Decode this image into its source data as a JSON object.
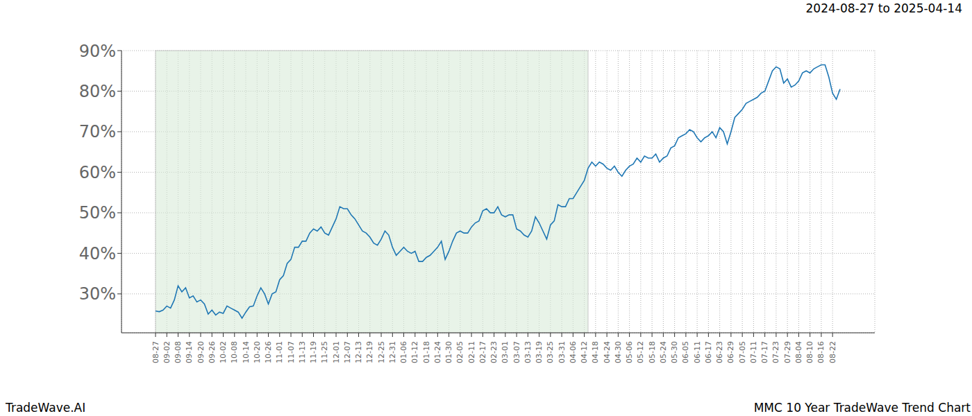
{
  "chart_data": {
    "type": "line",
    "title": "2024-08-27 to 2025-04-14",
    "subtitle": "MMC 10 Year TradeWave Trend Chart",
    "annotations": [
      "TradeWave.AI"
    ],
    "color": "#1f77b4",
    "grid": true,
    "ylim": [
      20.4,
      90
    ],
    "yticks": [
      {
        "value": 30,
        "label": "30%"
      },
      {
        "value": 40,
        "label": "40%"
      },
      {
        "value": 50,
        "label": "50%"
      },
      {
        "value": 60,
        "label": "60%"
      },
      {
        "value": 70,
        "label": "70%"
      },
      {
        "value": 80,
        "label": "80%"
      },
      {
        "value": 90,
        "label": "90%"
      }
    ],
    "categories": [
      "08-27",
      null,
      null,
      "09-02",
      null,
      null,
      "09-08",
      null,
      null,
      "09-14",
      null,
      null,
      "09-20",
      null,
      null,
      "09-26",
      null,
      null,
      "10-02",
      null,
      null,
      "10-08",
      null,
      null,
      "10-14",
      null,
      null,
      "10-20",
      null,
      null,
      "10-26",
      null,
      null,
      "11-01",
      null,
      null,
      "11-07",
      null,
      null,
      "11-13",
      null,
      null,
      "11-19",
      null,
      null,
      "11-25",
      null,
      null,
      "12-01",
      null,
      null,
      "12-07",
      null,
      null,
      "12-13",
      null,
      null,
      "12-19",
      null,
      null,
      "12-25",
      null,
      null,
      "12-31",
      null,
      null,
      "01-06",
      null,
      null,
      "01-12",
      null,
      null,
      "01-18",
      null,
      null,
      "01-24",
      null,
      null,
      "01-30",
      null,
      null,
      "02-05",
      null,
      null,
      "02-11",
      null,
      null,
      "02-17",
      null,
      null,
      "02-23",
      null,
      null,
      "03-01",
      null,
      null,
      "03-07",
      null,
      null,
      "03-13",
      null,
      null,
      "03-19",
      null,
      null,
      "03-25",
      null,
      null,
      "03-31",
      null,
      null,
      "04-06",
      null,
      null,
      "04-12",
      null,
      null,
      "04-18",
      null,
      null,
      "04-24",
      null,
      null,
      "04-30",
      null,
      null,
      "05-06",
      null,
      null,
      "05-12",
      null,
      null,
      "05-18",
      null,
      null,
      "05-24",
      null,
      null,
      "05-30",
      null,
      null,
      "06-05",
      null,
      null,
      "06-11",
      null,
      null,
      "06-17",
      null,
      null,
      "06-23",
      null,
      null,
      "06-29",
      null,
      null,
      "07-05",
      null,
      null,
      "07-11",
      null,
      null,
      "07-17",
      null,
      null,
      "07-23",
      null,
      null,
      "07-29",
      null,
      null,
      "08-04",
      null,
      null,
      "08-10",
      null,
      null,
      "08-16",
      null,
      null,
      "08-22",
      null,
      null
    ],
    "values": [
      25.8,
      25.6,
      26.0,
      27.0,
      26.5,
      28.5,
      32.0,
      30.5,
      31.5,
      29.0,
      29.5,
      28.0,
      28.5,
      27.5,
      25.0,
      26.0,
      24.8,
      25.5,
      25.2,
      27.0,
      26.5,
      26.0,
      25.5,
      24.0,
      25.5,
      26.8,
      27.0,
      29.5,
      31.5,
      30.0,
      27.5,
      30.0,
      30.5,
      33.5,
      34.5,
      37.5,
      38.5,
      41.5,
      41.5,
      43.0,
      43.0,
      45.0,
      46.0,
      45.5,
      46.5,
      45.0,
      44.5,
      46.5,
      48.5,
      51.5,
      51.0,
      51.0,
      49.5,
      48.5,
      47.0,
      45.5,
      45.0,
      44.0,
      42.5,
      42.0,
      43.5,
      45.5,
      44.5,
      41.5,
      39.5,
      40.5,
      41.5,
      40.5,
      40.0,
      40.5,
      38.0,
      38.0,
      39.0,
      39.5,
      40.5,
      41.5,
      43.0,
      38.5,
      40.5,
      43.0,
      45.0,
      45.5,
      45.0,
      45.0,
      46.5,
      47.5,
      48.0,
      50.5,
      51.0,
      50.0,
      50.0,
      51.5,
      49.5,
      49.0,
      49.5,
      49.5,
      46.0,
      45.5,
      44.5,
      44.0,
      45.5,
      49.0,
      47.5,
      45.5,
      43.5,
      47.0,
      48.0,
      52.0,
      51.5,
      51.5,
      53.5,
      53.5,
      55.0,
      56.5,
      58.0,
      61.0,
      62.5,
      61.5,
      62.5,
      62.0,
      61.0,
      60.5,
      61.5,
      60.0,
      59.0,
      60.5,
      61.5,
      62.0,
      63.5,
      62.5,
      64.0,
      63.5,
      63.5,
      64.5,
      62.5,
      63.5,
      64.0,
      66.0,
      66.5,
      68.5,
      69.0,
      69.5,
      70.5,
      70.0,
      68.5,
      67.5,
      68.5,
      69.0,
      70.0,
      68.5,
      71.0,
      70.0,
      67.0,
      70.0,
      73.5,
      74.5,
      75.5,
      77.0,
      77.5,
      78.0,
      78.5,
      79.5,
      80.0,
      82.5,
      85.0,
      86.0,
      85.5,
      82.0,
      83.0,
      81.0,
      81.5,
      82.5,
      84.5,
      85.0,
      84.5,
      85.5,
      86.0,
      86.5,
      86.5,
      83.5,
      79.5,
      78.0,
      80.5
    ]
  }
}
